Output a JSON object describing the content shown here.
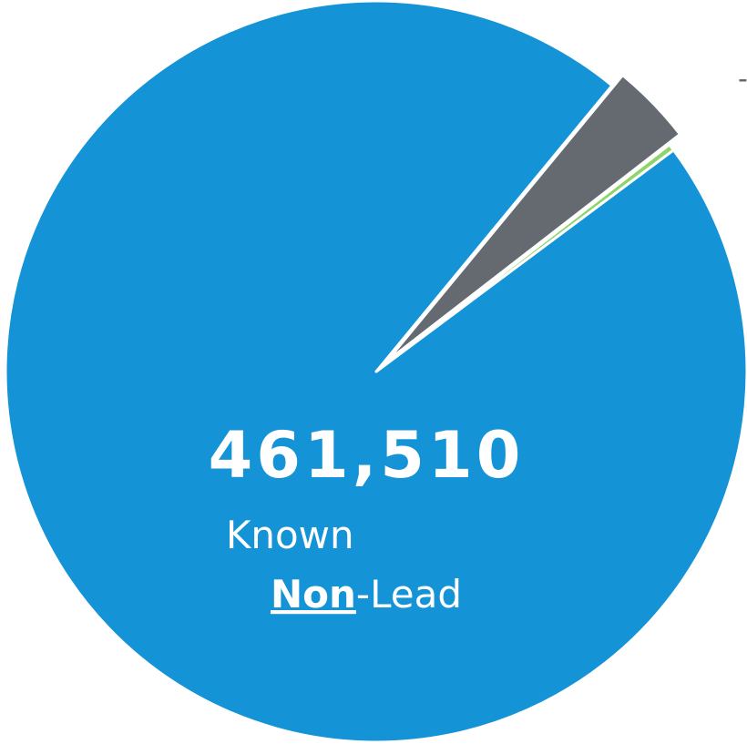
{
  "chart_data": {
    "type": "pie",
    "categories": [
      "Known Non-Lead",
      null,
      null
    ],
    "values": [
      461510,
      17000,
      1400
    ],
    "value_labels": [
      "461,510",
      null,
      null
    ],
    "colors": [
      "#1493d6",
      "#656a71",
      "#8fd46b"
    ],
    "startangle": 53.3,
    "explode": [
      0,
      0.04,
      0
    ],
    "annotations": [
      "-"
    ]
  }
}
